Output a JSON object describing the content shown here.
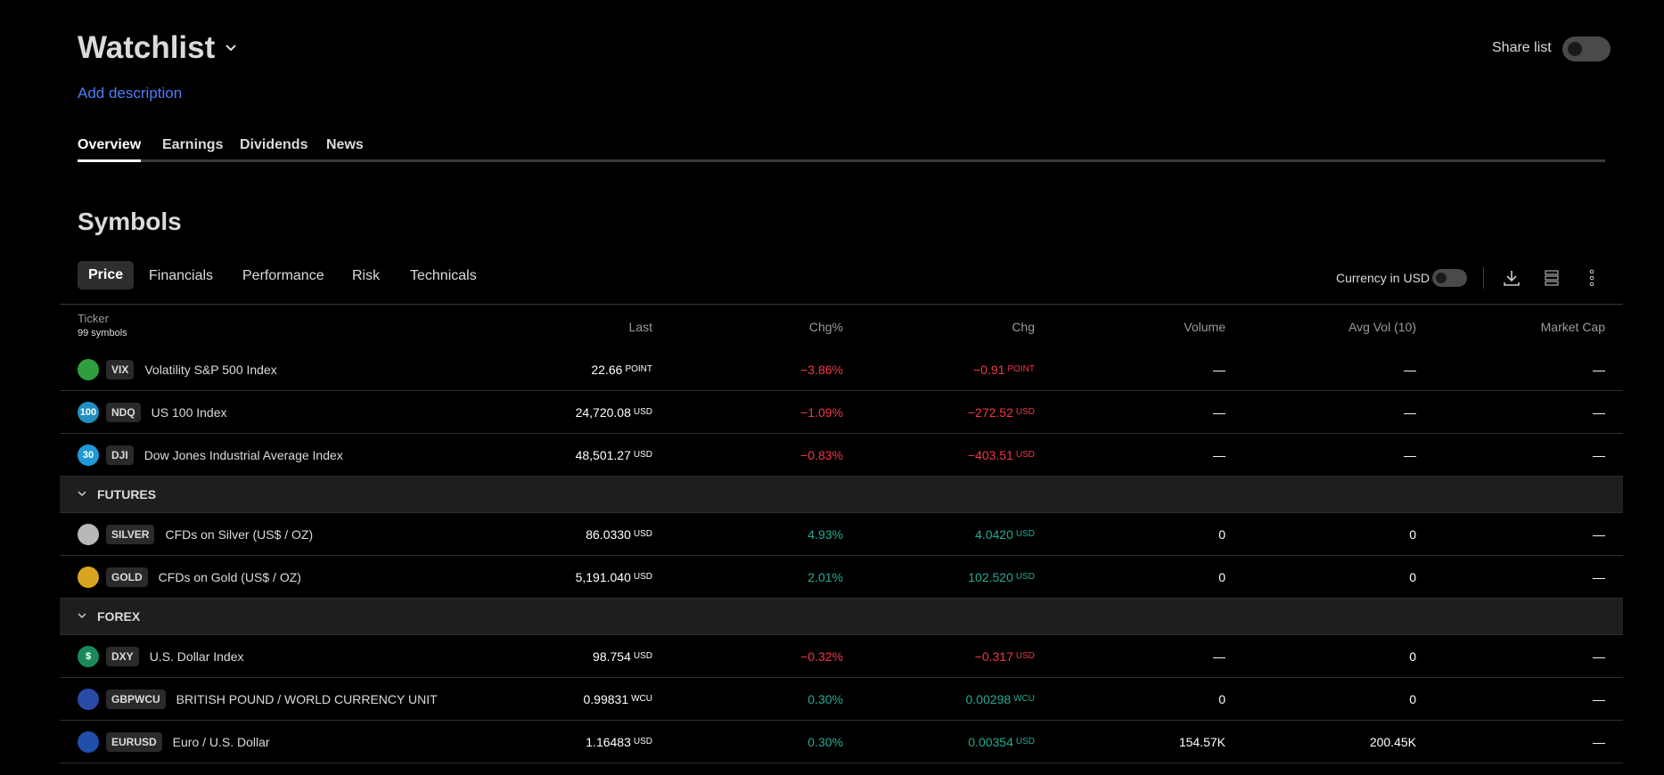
{
  "header": {
    "title": "Watchlist",
    "description": "Add description",
    "share": "Share list"
  },
  "tabs": [
    "Overview",
    "Earnings",
    "Dividends",
    "News"
  ],
  "section_title": "Symbols",
  "subtabs": [
    "Price",
    "Financials",
    "Performance",
    "Risk",
    "Technicals"
  ],
  "currency_toggle": "Currency in USD",
  "table": {
    "ticker_header": "Ticker",
    "symbol_count": "99 symbols",
    "columns": [
      "Last",
      "Chg%",
      "Chg",
      "Volume",
      "Avg Vol (10)",
      "Market Cap"
    ],
    "rows": [
      {
        "icon_color": "#2e9e3f",
        "ticker": "VIX",
        "name": "Volatility S&P 500 Index",
        "last": "22.66",
        "last_unit": "POINT",
        "chg_pct": "−3.86%",
        "chg": "−0.91",
        "chg_unit": "POINT",
        "volume": "—",
        "avg_vol": "—",
        "market_cap": "—"
      },
      {
        "icon_color": "#1e8fbf",
        "icon_label": "100",
        "ticker": "NDQ",
        "name": "US 100 Index",
        "last": "24,720.08",
        "last_unit": "USD",
        "chg_pct": "−1.09%",
        "chg": "−272.52",
        "chg_unit": "USD",
        "volume": "—",
        "avg_vol": "—",
        "market_cap": "—"
      },
      {
        "icon_color": "#1e9ad6",
        "icon_label": "30",
        "ticker": "DJI",
        "name": "Dow Jones Industrial Average Index",
        "last": "48,501.27",
        "last_unit": "USD",
        "chg_pct": "−0.83%",
        "chg": "−403.51",
        "chg_unit": "USD",
        "volume": "—",
        "avg_vol": "—",
        "market_cap": "—"
      },
      {
        "group": "FUTURES"
      },
      {
        "icon_color": "#b8b8b8",
        "ticker": "SILVER",
        "name": "CFDs on Silver (US$ / OZ)",
        "last": "86.0330",
        "last_unit": "USD",
        "chg_pct": "4.93%",
        "chg": "4.0420",
        "chg_unit": "USD",
        "volume": "0",
        "avg_vol": "0",
        "market_cap": "—"
      },
      {
        "icon_color": "#d9a521",
        "ticker": "GOLD",
        "name": "CFDs on Gold (US$ / OZ)",
        "last": "5,191.040",
        "last_unit": "USD",
        "chg_pct": "2.01%",
        "chg": "102.520",
        "chg_unit": "USD",
        "volume": "0",
        "avg_vol": "0",
        "market_cap": "—"
      },
      {
        "group": "FOREX"
      },
      {
        "icon_color": "#1b8a5a",
        "icon_label": "$",
        "ticker": "DXY",
        "name": "U.S. Dollar Index",
        "last": "98.754",
        "last_unit": "USD",
        "chg_pct": "−0.32%",
        "chg": "−0.317",
        "chg_unit": "USD",
        "volume": "—",
        "avg_vol": "0",
        "market_cap": "—"
      },
      {
        "icon_color": "#2a4aa8",
        "ticker": "GBPWCU",
        "name": "BRITISH POUND / WORLD CURRENCY UNIT",
        "last": "0.99831",
        "last_unit": "WCU",
        "chg_pct": "0.30%",
        "chg": "0.00298",
        "chg_unit": "WCU",
        "volume": "0",
        "avg_vol": "0",
        "market_cap": "—"
      },
      {
        "icon_color": "#1f4fa8",
        "ticker": "EURUSD",
        "name": "Euro / U.S. Dollar",
        "last": "1.16483",
        "last_unit": "USD",
        "chg_pct": "0.30%",
        "chg": "0.00354",
        "chg_unit": "USD",
        "volume": "154.57K",
        "avg_vol": "200.45K",
        "market_cap": "—"
      }
    ]
  }
}
